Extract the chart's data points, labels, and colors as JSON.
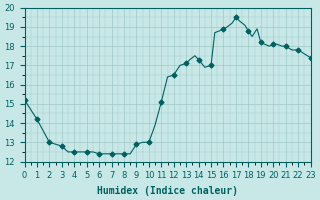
{
  "title": "",
  "xlabel": "Humidex (Indice chaleur)",
  "ylabel": "",
  "background_color": "#c8e8e8",
  "grid_color": "#a0c8c8",
  "line_color": "#006060",
  "marker_color": "#006060",
  "ylim": [
    12,
    20
  ],
  "xlim": [
    0,
    23
  ],
  "yticks": [
    12,
    13,
    14,
    15,
    16,
    17,
    18,
    19,
    20
  ],
  "xtick_labels": [
    "0",
    "1",
    "2",
    "3",
    "4",
    "5",
    "6",
    "7",
    "8",
    "9",
    "10",
    "11",
    "12",
    "13",
    "14",
    "15",
    "16",
    "17",
    "18",
    "19",
    "20",
    "21",
    "22",
    "23"
  ],
  "x": [
    0,
    1,
    2,
    3,
    3.5,
    4,
    4.5,
    5,
    5.5,
    6,
    6.5,
    7,
    7.5,
    8,
    8.5,
    9,
    9.5,
    10,
    10.5,
    11,
    11.5,
    12,
    12.5,
    13,
    13.3,
    13.7,
    14,
    14.5,
    15,
    15.3,
    15.7,
    16,
    16.3,
    16.7,
    17,
    17.3,
    17.7,
    18,
    18.3,
    18.7,
    19,
    19.3,
    19.7,
    20,
    20.3,
    20.7,
    21,
    21.5,
    22,
    22.5,
    23
  ],
  "y": [
    15.2,
    14.2,
    13.0,
    12.8,
    12.5,
    12.5,
    12.5,
    12.5,
    12.5,
    12.4,
    12.4,
    12.4,
    12.4,
    12.4,
    12.4,
    12.9,
    13.0,
    13.0,
    13.9,
    15.1,
    16.4,
    16.5,
    17.0,
    17.1,
    17.3,
    17.5,
    17.3,
    16.9,
    17.0,
    18.7,
    18.8,
    18.9,
    19.0,
    19.2,
    19.5,
    19.3,
    19.1,
    18.8,
    18.5,
    18.9,
    18.2,
    18.1,
    18.0,
    18.1,
    18.1,
    18.0,
    18.0,
    17.8,
    17.8,
    17.6,
    17.4
  ],
  "marker_x": [
    0,
    1,
    2,
    3,
    4,
    5,
    6,
    7,
    8,
    9,
    10,
    11,
    12,
    13,
    14,
    15,
    16,
    17,
    18,
    19,
    20,
    21,
    22,
    23
  ],
  "marker_y": [
    15.2,
    14.2,
    13.0,
    12.8,
    12.5,
    12.5,
    12.4,
    12.4,
    12.4,
    12.9,
    13.0,
    15.1,
    16.5,
    17.1,
    17.3,
    17.0,
    18.9,
    19.5,
    18.8,
    18.2,
    18.1,
    18.0,
    17.8,
    17.4
  ]
}
